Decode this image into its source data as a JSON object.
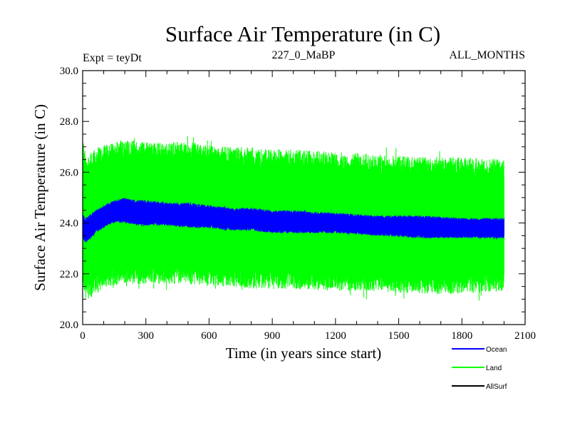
{
  "chart_data": {
    "type": "line",
    "title": "Surface Air Temperature (in C)",
    "subtitle_left": "Expt = teyDt",
    "subtitle_center": "227_0_MaBP",
    "subtitle_right": "ALL_MONTHS",
    "xlabel": "Time (in years since start)",
    "ylabel": "Surface Air Temperature (in C)",
    "xlim": [
      0,
      2100
    ],
    "ylim": [
      20.0,
      30.0
    ],
    "x_ticks": [
      0,
      300,
      600,
      900,
      1200,
      1500,
      1800,
      2100
    ],
    "x_tick_labels": [
      "0",
      "300",
      "600",
      "900",
      "1200",
      "1500",
      "1800",
      "2100"
    ],
    "y_ticks": [
      20.0,
      22.0,
      24.0,
      26.0,
      28.0,
      30.0
    ],
    "y_tick_labels": [
      "20.0",
      "22.0",
      "24.0",
      "26.0",
      "28.0",
      "30.0"
    ],
    "x_end": 2000,
    "series": [
      {
        "name": "Land",
        "color": "#00ff00",
        "envelope": {
          "x": [
            0,
            25,
            50,
            100,
            150,
            200,
            300,
            400,
            500,
            600,
            700,
            800,
            900,
            1000,
            1200,
            1400,
            1600,
            1800,
            2000
          ],
          "upper": [
            27.3,
            26.6,
            26.9,
            27.1,
            27.2,
            27.3,
            27.2,
            27.2,
            27.2,
            27.1,
            27.0,
            27.0,
            26.9,
            26.9,
            26.8,
            26.7,
            26.6,
            26.6,
            26.5
          ],
          "lower": [
            21.4,
            21.0,
            21.1,
            21.4,
            21.5,
            21.6,
            21.6,
            21.6,
            21.6,
            21.5,
            21.5,
            21.4,
            21.4,
            21.4,
            21.3,
            21.3,
            21.2,
            21.2,
            21.3
          ]
        }
      },
      {
        "name": "Ocean",
        "color": "#0000ff",
        "envelope": {
          "x": [
            0,
            10,
            30,
            60,
            100,
            150,
            200,
            250,
            300,
            400,
            500,
            600,
            700,
            800,
            900,
            1000,
            1200,
            1400,
            1600,
            1800,
            2000
          ],
          "upper": [
            24.4,
            24.2,
            24.3,
            24.5,
            24.7,
            24.9,
            25.0,
            24.9,
            24.9,
            24.8,
            24.8,
            24.7,
            24.6,
            24.6,
            24.5,
            24.5,
            24.4,
            24.3,
            24.3,
            24.2,
            24.2
          ],
          "lower": [
            23.4,
            23.2,
            23.3,
            23.6,
            23.8,
            24.0,
            24.0,
            23.9,
            23.9,
            23.9,
            23.8,
            23.8,
            23.7,
            23.7,
            23.6,
            23.6,
            23.6,
            23.5,
            23.4,
            23.4,
            23.4
          ]
        }
      },
      {
        "name": "AllSurf",
        "color": "#000000",
        "envelope": null
      }
    ],
    "legend_order": [
      "Ocean",
      "Land",
      "AllSurf"
    ],
    "legend_position": "bottom-right"
  }
}
